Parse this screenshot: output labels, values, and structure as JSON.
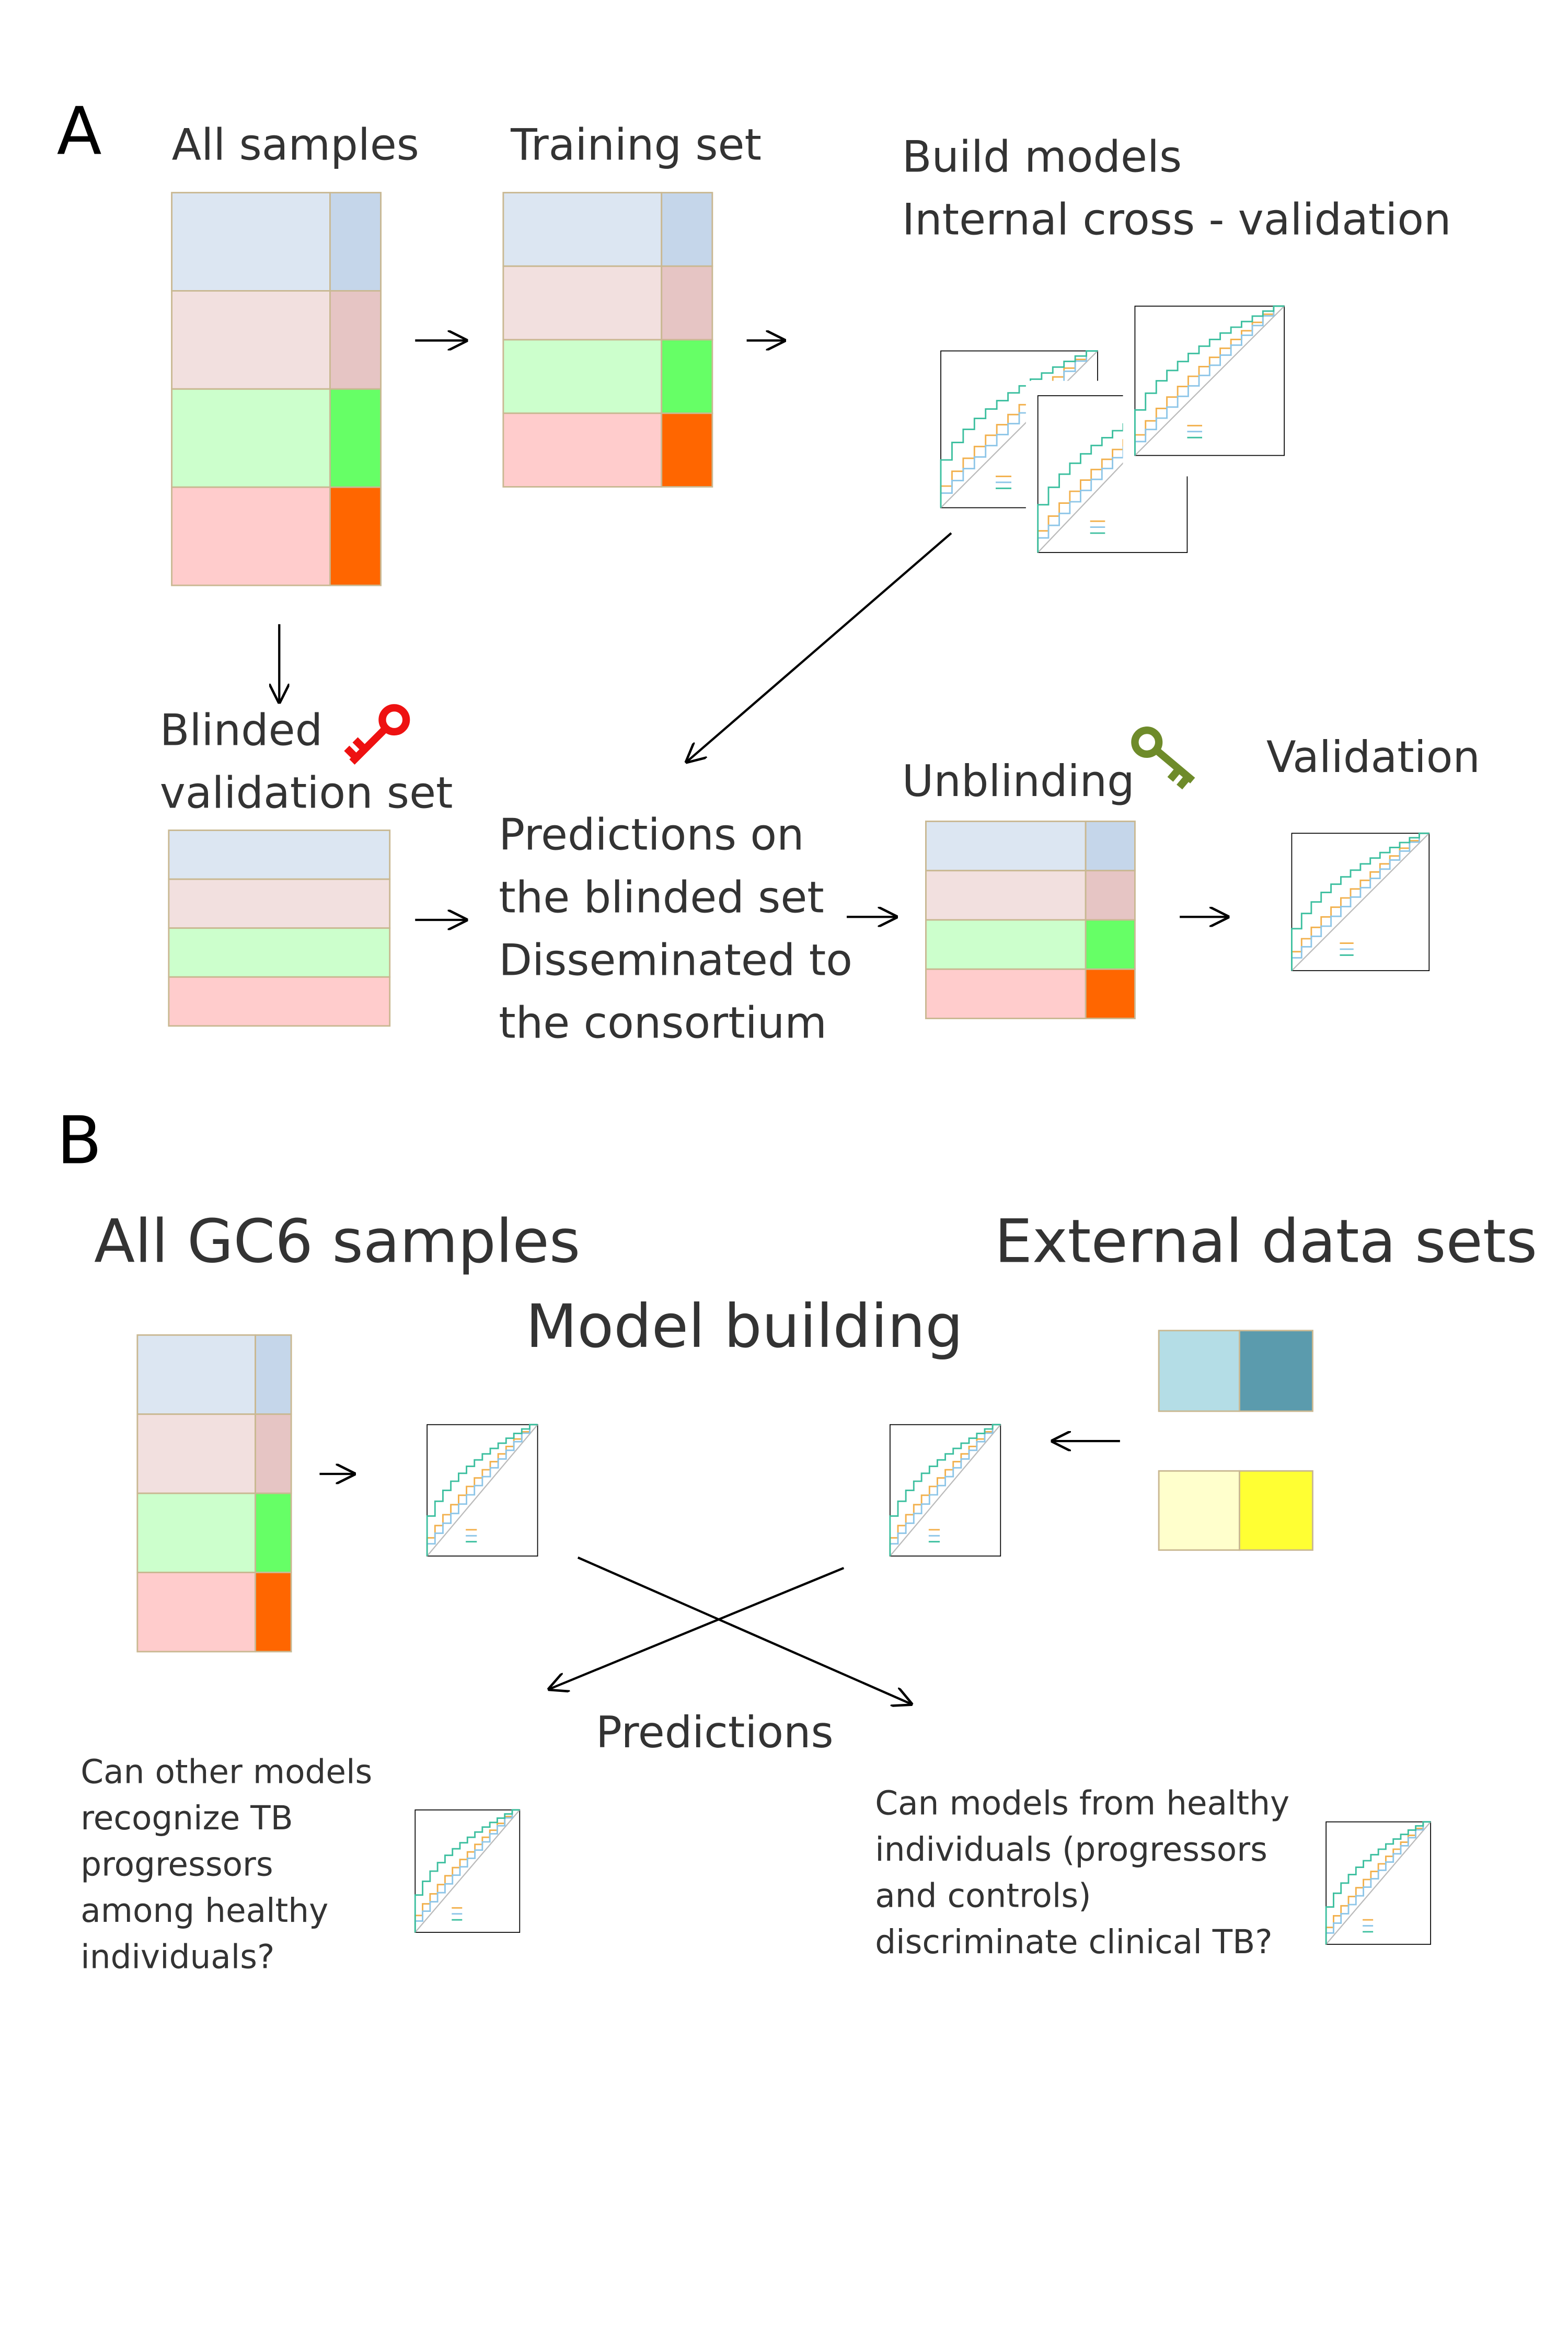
{
  "panel_a": {
    "label": "A",
    "all_samples": "All samples",
    "training_set": "Training set",
    "build_models": [
      "Build models",
      "Internal cross - validation"
    ],
    "blinded_validation": [
      "Blinded",
      "validation set"
    ],
    "predictions": [
      "Predictions on",
      "the blinded set",
      "Disseminated to",
      "the consortium"
    ],
    "unblinding": "Unblinding",
    "validation": "Validation"
  },
  "panel_b": {
    "label": "B",
    "all_gc6_samples": "All GC6 samples",
    "external_data_sets": "External data sets",
    "model_building": "Model building",
    "predictions": "Predictions",
    "question_left": [
      "Can other models",
      "recognize TB",
      "progressors",
      "among healthy",
      "individuals?"
    ],
    "question_right": [
      "Can models from healthy",
      "individuals (progressors",
      "and controls)",
      "discriminate clinical TB?"
    ]
  }
}
